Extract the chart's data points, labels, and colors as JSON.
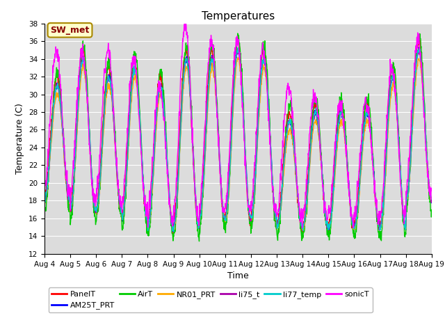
{
  "title": "Temperatures",
  "xlabel": "Time",
  "ylabel": "Temperature (C)",
  "ylim": [
    12,
    38
  ],
  "yticks": [
    12,
    14,
    16,
    18,
    20,
    22,
    24,
    26,
    28,
    30,
    32,
    34,
    36,
    38
  ],
  "x_labels": [
    "Aug 4",
    "Aug 5",
    "Aug 6",
    "Aug 7",
    "Aug 8",
    "Aug 9",
    "Aug 10",
    "Aug 11",
    "Aug 12",
    "Aug 13",
    "Aug 14",
    "Aug 15",
    "Aug 16",
    "Aug 17",
    "Aug 18",
    "Aug 19"
  ],
  "series_names": [
    "PanelT",
    "AM25T_PRT",
    "AirT",
    "NR01_PRT",
    "li75_t",
    "li77_temp",
    "sonicT"
  ],
  "series_colors": {
    "PanelT": "#ff0000",
    "AM25T_PRT": "#0000ff",
    "AirT": "#00cc00",
    "NR01_PRT": "#ffaa00",
    "li75_t": "#aa00aa",
    "li77_temp": "#00cccc",
    "sonicT": "#ff00ff"
  },
  "lw": 1.0,
  "legend_label": "SW_met",
  "legend_bg": "#ffffcc",
  "legend_edge": "#aa8800",
  "legend_text_color": "#880000",
  "plot_bg": "#dcdcdc",
  "grid_color": "#ffffff",
  "title_fontsize": 11,
  "tick_fontsize": 7.5,
  "figsize": [
    6.4,
    4.8
  ],
  "dpi": 100,
  "n_days": 15,
  "n_per_day": 96,
  "day_peaks": [
    32,
    35,
    33,
    34,
    32,
    35,
    35,
    36,
    35,
    28,
    29,
    29,
    29,
    33,
    36
  ],
  "sonic_peaks": [
    35,
    35,
    35,
    34,
    31,
    38,
    36,
    36,
    35,
    31,
    30,
    29,
    29,
    33,
    36
  ],
  "day_mins": [
    18,
    17,
    17,
    16,
    15,
    15,
    16,
    16,
    16,
    15,
    15,
    15,
    15,
    15,
    18
  ],
  "base_noise": 0.2
}
